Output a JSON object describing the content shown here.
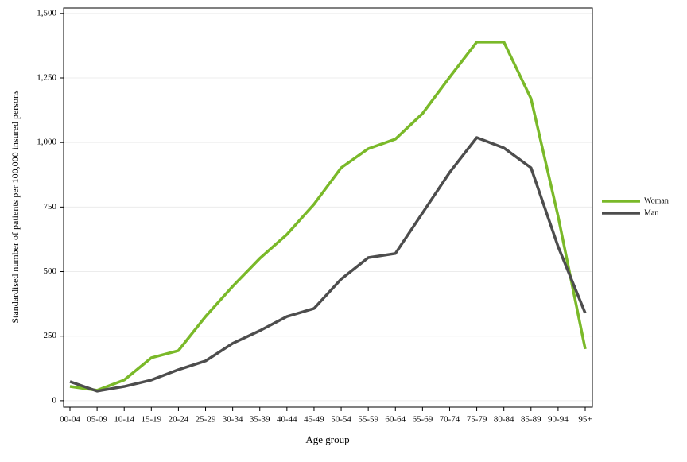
{
  "chart_data": {
    "type": "line",
    "x_label": "Age group",
    "y_label": "Standardised number of patients per 100,000 insured persons",
    "categories": [
      "00-04",
      "05-09",
      "10-14",
      "15-19",
      "20-24",
      "25-29",
      "30-34",
      "35-39",
      "40-44",
      "45-49",
      "50-54",
      "55-59",
      "60-64",
      "65-69",
      "70-74",
      "75-79",
      "80-84",
      "85-89",
      "90-94",
      "95+"
    ],
    "series": [
      {
        "name": "Woman",
        "color": "#7ab929",
        "values": [
          55,
          40,
          80,
          166,
          194,
          326,
          443,
          551,
          644,
          761,
          902,
          976,
          1013,
          1112,
          1253,
          1389,
          1389,
          1170,
          714,
          200
        ]
      },
      {
        "name": "Man",
        "color": "#4d4d4d",
        "values": [
          74,
          37,
          55,
          80,
          120,
          154,
          222,
          271,
          326,
          357,
          471,
          554,
          570,
          727,
          884,
          1019,
          979,
          902,
          597,
          339
        ]
      }
    ],
    "ylim": [
      -25,
      1521
    ],
    "yticks": [
      0,
      250,
      500,
      750,
      {
        "value": 1000,
        "label": "1,000"
      },
      {
        "value": 1250,
        "label": "1,250"
      },
      {
        "value": 1500,
        "label": "1,500"
      }
    ],
    "grid": true,
    "legend": "right"
  }
}
